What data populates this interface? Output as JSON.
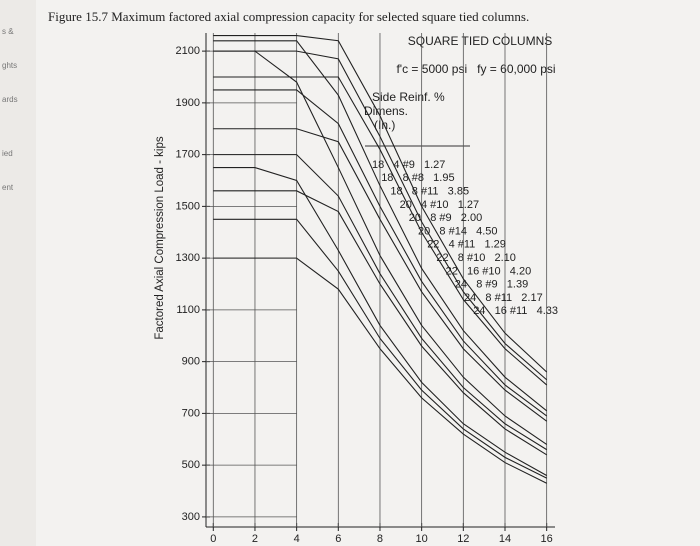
{
  "margin_text": [
    "s &",
    "ghts",
    "ards",
    "ied",
    "ent"
  ],
  "chart_data": {
    "type": "line",
    "title": "Figure 15.7 Maximum factored axial compression capacity for selected square tied columns.",
    "y_label": "Factored Axial Compression Load - kips",
    "annotations": [
      "SQUARE TIED COLUMNS",
      "f'c = 5000 psi   fy = 60,000 psi",
      "Side Reinf. %",
      "Dimens.",
      "(In.)"
    ],
    "x": [
      0,
      2,
      4,
      6,
      8,
      10,
      12,
      14,
      16
    ],
    "xlim": [
      -0.35,
      16.4
    ],
    "xticks": [
      0,
      2,
      4,
      6,
      8,
      10,
      12,
      14,
      16
    ],
    "ylim": [
      261,
      2170
    ],
    "yticks": [
      300,
      500,
      700,
      900,
      1100,
      1300,
      1500,
      1700,
      1900,
      2100
    ],
    "grid": true,
    "series": [
      {
        "name": "18   4 #9   1.27",
        "color": "#222222",
        "values": [
          1300,
          1300,
          1300,
          1180,
          950,
          760,
          620,
          510,
          430
        ]
      },
      {
        "name": "18   8 #8   1.95",
        "color": "#222222",
        "values": [
          1450,
          1450,
          1450,
          1250,
          990,
          790,
          640,
          530,
          450
        ]
      },
      {
        "name": "18   8 #11   3.85",
        "color": "#222222",
        "values": [
          1650,
          1650,
          1600,
          1330,
          1040,
          820,
          660,
          550,
          460
        ]
      },
      {
        "name": "20   4 #10   1.27",
        "color": "#222222",
        "values": [
          1560,
          1560,
          1560,
          1480,
          1200,
          960,
          780,
          640,
          540
        ]
      },
      {
        "name": "20   8 #9   2.00",
        "color": "#222222",
        "values": [
          1700,
          1700,
          1700,
          1540,
          1240,
          990,
          800,
          660,
          560
        ]
      },
      {
        "name": "20   8 #14   4.50",
        "color": "#222222",
        "values": [
          2100,
          2100,
          1980,
          1650,
          1310,
          1040,
          840,
          690,
          580
        ]
      },
      {
        "name": "22   4 #11   1.29",
        "color": "#222222",
        "values": [
          1800,
          1800,
          1800,
          1750,
          1450,
          1170,
          950,
          790,
          670
        ]
      },
      {
        "name": "22   8 #10   2.10",
        "color": "#222222",
        "values": [
          1950,
          1950,
          1950,
          1820,
          1500,
          1210,
          980,
          810,
          690
        ]
      },
      {
        "name": "22   16 #10   4.20",
        "color": "#222222",
        "values": [
          2140,
          2140,
          2140,
          1930,
          1580,
          1260,
          1020,
          840,
          710
        ]
      },
      {
        "name": "24   8 #9   1.39",
        "color": "#222222",
        "values": [
          2000,
          2000,
          2000,
          2000,
          1720,
          1400,
          1140,
          950,
          810
        ]
      },
      {
        "name": "24   8 #11   2.17",
        "color": "#222222",
        "values": [
          2100,
          2100,
          2100,
          2070,
          1770,
          1440,
          1170,
          970,
          830
        ]
      },
      {
        "name": "24   16 #11   4.33",
        "color": "#222222",
        "values": [
          2160,
          2160,
          2160,
          2140,
          1850,
          1500,
          1220,
          1010,
          860
        ]
      }
    ]
  }
}
